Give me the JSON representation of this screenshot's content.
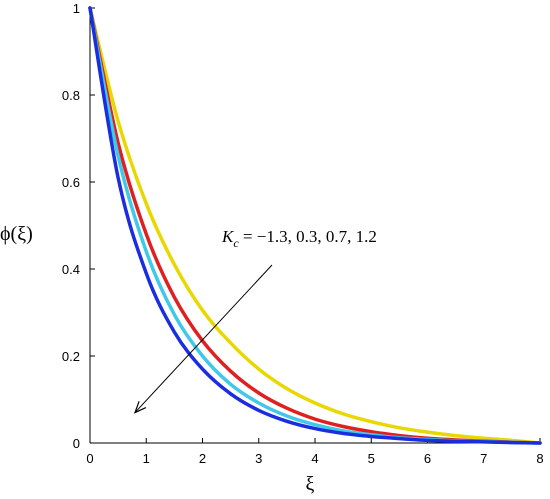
{
  "chart_data": {
    "type": "line",
    "title": "",
    "xlabel": "ξ",
    "ylabel": "ϕ(ξ)",
    "xlim": [
      0,
      8
    ],
    "ylim": [
      0,
      1
    ],
    "x_ticks": [
      "0",
      "1",
      "2",
      "3",
      "4",
      "5",
      "6",
      "7",
      "8"
    ],
    "y_ticks": [
      "0",
      "0.2",
      "0.4",
      "0.6",
      "0.8",
      "1"
    ],
    "grid": false,
    "annotation": {
      "symbol": "K",
      "subscript": "c",
      "text": " = −1.3, 0.3, 0.7, 1.2",
      "arrow_from": [
        6.5,
        0.4
      ],
      "arrow_to": [
        0.8,
        0.07
      ]
    },
    "x": [
      0,
      0.5,
      1,
      1.5,
      2,
      2.5,
      3,
      3.5,
      4,
      4.5,
      5,
      5.5,
      6,
      6.5,
      7,
      7.5,
      8
    ],
    "series": [
      {
        "color": "#e8d800",
        "values": [
          1.0,
          0.74,
          0.55,
          0.41,
          0.305,
          0.23,
          0.17,
          0.125,
          0.092,
          0.067,
          0.049,
          0.035,
          0.025,
          0.017,
          0.011,
          0.006,
          0.0
        ]
      },
      {
        "color": "#e02020",
        "values": [
          1.0,
          0.69,
          0.48,
          0.335,
          0.235,
          0.165,
          0.115,
          0.08,
          0.055,
          0.038,
          0.026,
          0.017,
          0.011,
          0.007,
          0.004,
          0.002,
          0.0
        ]
      },
      {
        "color": "#40c8e8",
        "values": [
          1.0,
          0.66,
          0.44,
          0.295,
          0.2,
          0.135,
          0.092,
          0.062,
          0.042,
          0.028,
          0.019,
          0.012,
          0.008,
          0.005,
          0.003,
          0.0015,
          0.0
        ]
      },
      {
        "color": "#1a2ee0",
        "values": [
          1.0,
          0.61,
          0.39,
          0.255,
          0.17,
          0.113,
          0.075,
          0.05,
          0.033,
          0.022,
          0.015,
          0.01,
          0.006,
          0.004,
          0.0025,
          0.001,
          0.0
        ]
      }
    ]
  }
}
